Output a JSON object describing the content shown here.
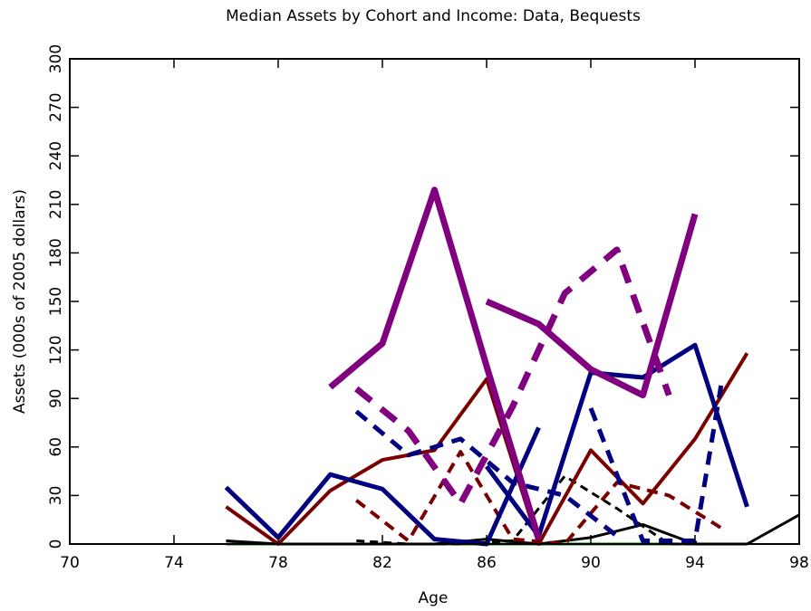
{
  "chart_data": {
    "type": "line",
    "title": "Median Assets by Cohort and Income:  Data, Bequests",
    "x_label": "Age",
    "y_label": "Assets (000s of 2005 dollars)",
    "xlim": [
      70,
      98
    ],
    "xticks": [
      70,
      74,
      78,
      82,
      86,
      90,
      94,
      98
    ],
    "ylim": [
      0,
      300
    ],
    "yticks": [
      0,
      30,
      60,
      90,
      120,
      150,
      180,
      210,
      240,
      270,
      300
    ],
    "series": [
      {
        "color": "#008000",
        "dash": false,
        "x": [
          76,
          78,
          80,
          82,
          84,
          86,
          88,
          90,
          92,
          94,
          96
        ],
        "values": [
          0,
          0,
          0,
          0,
          0,
          0,
          0,
          0,
          0,
          0,
          0
        ]
      },
      {
        "color": "#000000",
        "dash": true,
        "x": [
          81,
          83,
          85,
          87,
          89,
          91,
          93,
          95
        ],
        "values": [
          2,
          0,
          0,
          2,
          42,
          22,
          0,
          0
        ]
      },
      {
        "color": "#000000",
        "dash": false,
        "x": [
          76,
          78,
          80,
          82,
          84,
          86,
          88,
          90,
          92,
          94,
          96,
          98
        ],
        "values": [
          2,
          0,
          0,
          0,
          0,
          3,
          0,
          4,
          12,
          0,
          0,
          18
        ]
      },
      {
        "color": "#7a0000",
        "dash": true,
        "x": [
          81,
          83,
          85,
          87,
          89,
          91,
          93,
          95
        ],
        "values": [
          27,
          2,
          57,
          3,
          0,
          38,
          30,
          10
        ]
      },
      {
        "color": "#7a0000",
        "dash": false,
        "x": [
          76,
          78,
          80,
          82,
          84,
          86,
          88,
          90,
          92,
          94,
          96
        ],
        "values": [
          23,
          0,
          33,
          52,
          58,
          102,
          0,
          58,
          25,
          65,
          118
        ]
      },
      {
        "color": "#000080",
        "dash": true,
        "x": [
          81,
          83,
          85,
          87,
          89,
          91
        ],
        "values": [
          82,
          55,
          65,
          38,
          30,
          5
        ]
      },
      {
        "color": "#000080",
        "dash": true,
        "x": [
          90,
          92,
          94,
          95
        ],
        "values": [
          84,
          2,
          2,
          98
        ]
      },
      {
        "color": "#000080",
        "dash": false,
        "x": [
          76,
          78,
          80,
          82,
          84,
          86,
          88
        ],
        "values": [
          35,
          4,
          43,
          34,
          3,
          0,
          72
        ]
      },
      {
        "color": "#000080",
        "dash": false,
        "x": [
          86,
          88,
          90,
          92,
          94,
          96
        ],
        "values": [
          48,
          5,
          106,
          103,
          123,
          23
        ]
      },
      {
        "color": "#800080",
        "dash": true,
        "x": [
          81,
          83,
          85,
          87,
          89,
          91,
          93
        ],
        "values": [
          96,
          70,
          25,
          85,
          155,
          182,
          92
        ]
      },
      {
        "color": "#800080",
        "dash": false,
        "x": [
          80,
          82,
          84,
          86,
          88
        ],
        "values": [
          97,
          124,
          219,
          110,
          3
        ]
      },
      {
        "color": "#800080",
        "dash": false,
        "x": [
          86,
          88,
          90,
          92,
          94
        ],
        "values": [
          150,
          136,
          108,
          92,
          204
        ]
      }
    ]
  }
}
